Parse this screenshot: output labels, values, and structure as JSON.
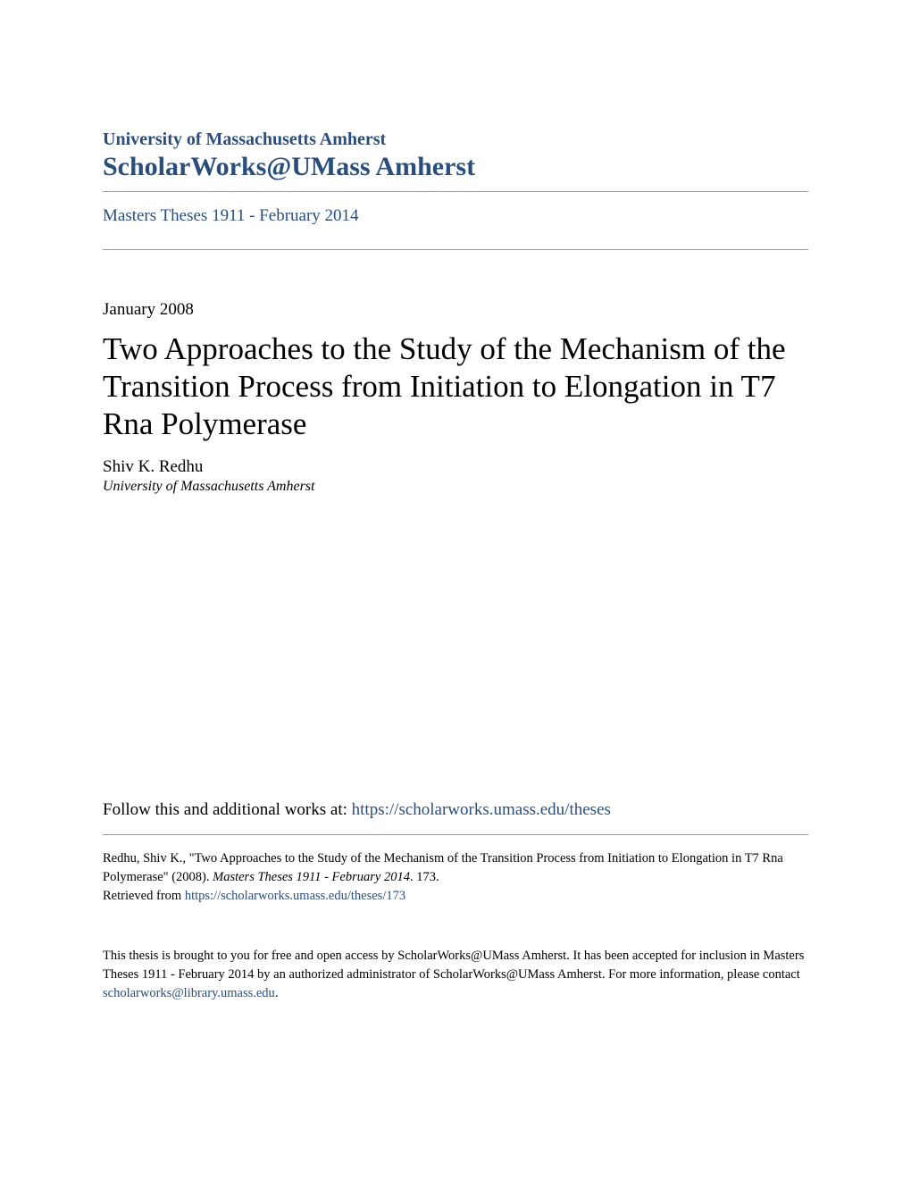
{
  "header": {
    "university_name": "University of Massachusetts Amherst",
    "repository_name": "ScholarWorks@UMass Amherst"
  },
  "collection": {
    "link_text": "Masters Theses 1911 - February 2014"
  },
  "date": "January 2008",
  "title": "Two Approaches to the Study of the Mechanism of the Transition Process from Initiation to Elongation in T7 Rna Polymerase",
  "author": {
    "name": "Shiv K. Redhu",
    "affiliation": "University of Massachusetts Amherst"
  },
  "follow": {
    "prefix": "Follow this and additional works at: ",
    "url": "https://scholarworks.umass.edu/theses"
  },
  "citation": {
    "text_part1": "Redhu, Shiv K., \"Two Approaches to the Study of the Mechanism of the Transition Process from Initiation to Elongation in T7 Rna Polymerase\" (2008). ",
    "italic_part": "Masters Theses 1911 - February 2014",
    "text_part2": ". 173.",
    "retrieved_label": "Retrieved from ",
    "retrieved_url": "https://scholarworks.umass.edu/theses/173"
  },
  "footer": {
    "text": "This thesis is brought to you for free and open access by ScholarWorks@UMass Amherst. It has been accepted for inclusion in Masters Theses 1911 - February 2014 by an authorized administrator of ScholarWorks@UMass Amherst. For more information, please contact ",
    "contact_email": "scholarworks@library.umass.edu",
    "period": "."
  },
  "colors": {
    "link_color": "#2a4e7c",
    "text_color": "#000000",
    "border_color": "#999999",
    "background": "#ffffff"
  }
}
